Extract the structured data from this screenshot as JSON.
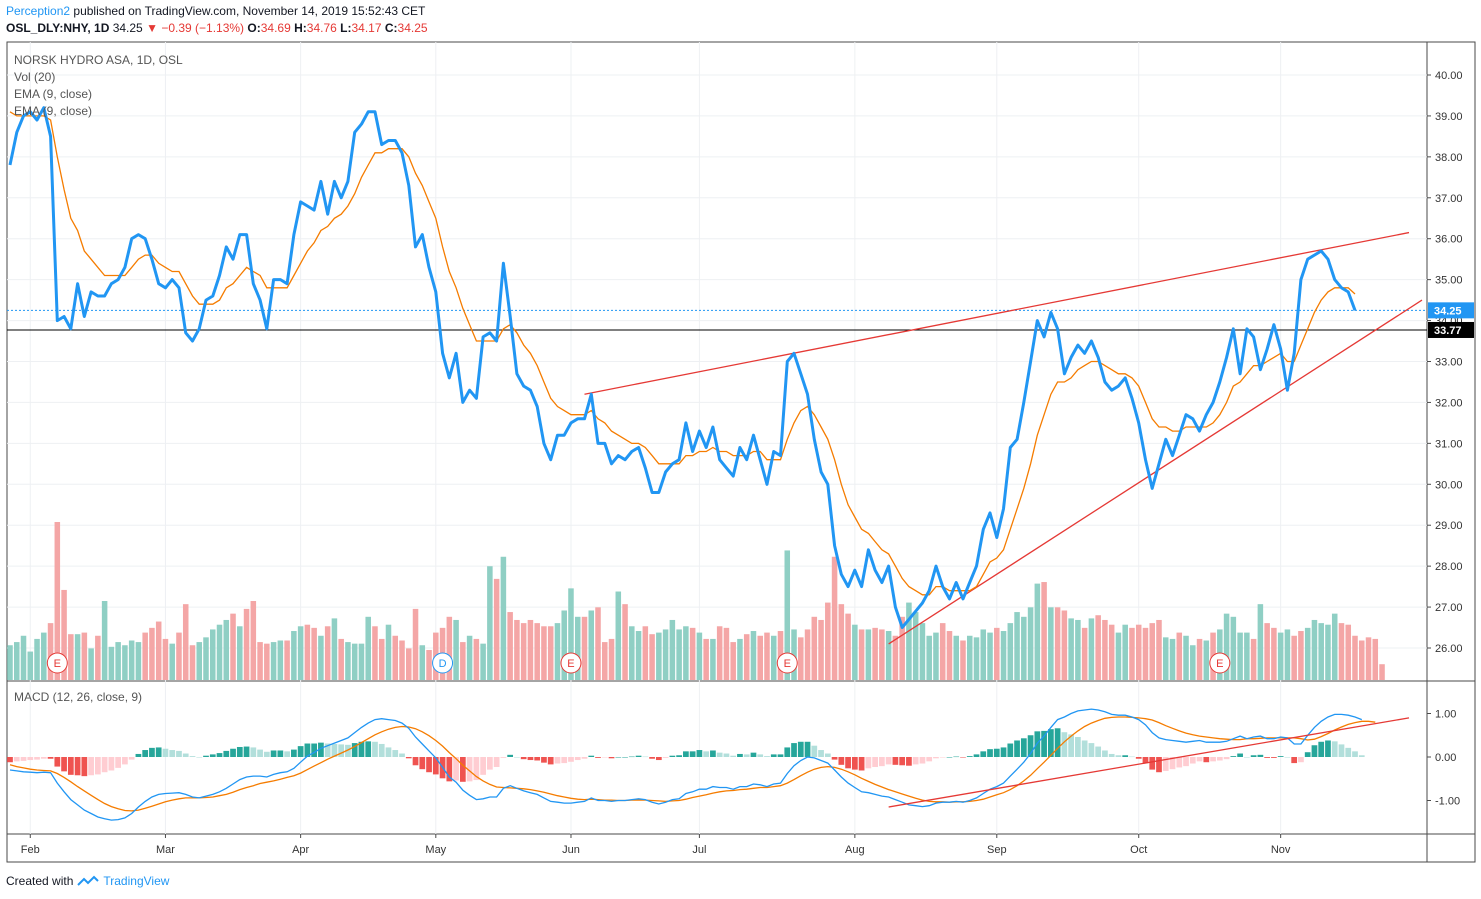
{
  "header": {
    "author": "Perception2",
    "published_text": "published on TradingView.com, November 14, 2019 15:52:43 CET",
    "symbol": "OSL_DLY:NHY, 1D",
    "last": "34.25",
    "change": "−0.39 (−1.13%)",
    "o_label": "O:",
    "o": "34.69",
    "h_label": "H:",
    "h": "34.76",
    "l_label": "L:",
    "l": "34.17",
    "c_label": "C:",
    "c": "34.25"
  },
  "legend": {
    "title": "NORSK HYDRO ASA, 1D, OSL",
    "vol": "Vol (20)",
    "ema1": "EMA (9, close)",
    "ema2": "EMA (9, close)",
    "macd": "MACD (12, 26, close, 9)"
  },
  "footer": {
    "created_with": "Created with",
    "brand": "TradingView"
  },
  "colors": {
    "price": "#2196f3",
    "ema": "#f57c00",
    "trend": "#e53935",
    "vol_up": "#8fcfc4",
    "vol_down": "#f4a6a6",
    "macd_line": "#2196f3",
    "signal_line": "#f57c00",
    "hist_pos_strong": "#26a69a",
    "hist_pos_weak": "#b2dfdb",
    "hist_neg_strong": "#ef5350",
    "hist_neg_weak": "#ffcdd2"
  },
  "chart_data": {
    "type": "line",
    "price_axis": {
      "ticks": [
        "40.00",
        "39.00",
        "38.00",
        "37.00",
        "36.00",
        "35.00",
        "34.00",
        "33.00",
        "32.00",
        "31.00",
        "30.00",
        "29.00",
        "28.00",
        "27.00",
        "26.00"
      ],
      "range": [
        25.3,
        40.7
      ]
    },
    "macd_axis": {
      "ticks": [
        "1.00",
        "0.00",
        "-1.00"
      ],
      "range": [
        -1.75,
        1.75
      ]
    },
    "months": [
      "Feb",
      "Mar",
      "Apr",
      "May",
      "Jun",
      "Jul",
      "Aug",
      "Sep",
      "Oct",
      "Nov"
    ],
    "month_index": [
      3,
      23,
      43,
      63,
      83,
      102,
      125,
      146,
      167,
      188
    ],
    "last_price_label": "34.25",
    "last_price": 34.25,
    "level_label": "33.77",
    "level": 33.77,
    "price": [
      37.8,
      38.6,
      39.0,
      39.1,
      38.9,
      39.2,
      38.5,
      34.0,
      34.1,
      33.8,
      34.9,
      34.1,
      34.7,
      34.6,
      34.6,
      34.9,
      35.0,
      35.3,
      36.0,
      36.1,
      36.0,
      35.5,
      34.9,
      34.8,
      35.0,
      34.8,
      33.7,
      33.5,
      33.8,
      34.5,
      34.6,
      35.1,
      35.8,
      35.5,
      36.1,
      36.1,
      34.9,
      34.5,
      33.8,
      35.0,
      35.0,
      34.9,
      36.1,
      36.9,
      36.8,
      36.7,
      37.4,
      36.6,
      37.4,
      37.0,
      37.4,
      38.6,
      38.8,
      39.1,
      39.1,
      38.3,
      38.4,
      38.4,
      38.1,
      37.3,
      35.8,
      36.1,
      35.3,
      34.7,
      33.2,
      32.6,
      33.2,
      32.0,
      32.3,
      32.1,
      33.6,
      33.7,
      33.5,
      35.4,
      34.1,
      32.7,
      32.4,
      32.3,
      31.9,
      31.0,
      30.6,
      31.2,
      31.2,
      31.5,
      31.6,
      31.6,
      32.2,
      31.0,
      31.0,
      30.5,
      30.7,
      30.6,
      30.8,
      30.9,
      30.4,
      29.8,
      29.8,
      30.3,
      30.5,
      30.6,
      31.5,
      30.8,
      31.3,
      30.9,
      31.4,
      30.6,
      30.4,
      30.2,
      30.9,
      30.6,
      31.2,
      30.6,
      30.0,
      30.8,
      30.7,
      33.0,
      33.2,
      32.7,
      32.2,
      31.1,
      30.3,
      30.0,
      28.5,
      27.8,
      27.5,
      27.9,
      27.5,
      28.4,
      27.9,
      27.6,
      28.0,
      27.0,
      26.5,
      26.7,
      26.9,
      27.1,
      27.4,
      28.0,
      27.5,
      27.2,
      27.6,
      27.2,
      27.6,
      28.0,
      28.9,
      29.3,
      28.7,
      29.4,
      30.9,
      31.1,
      32.0,
      33.0,
      34.0,
      33.6,
      34.2,
      33.8,
      32.7,
      33.1,
      33.4,
      33.2,
      33.5,
      33.1,
      32.5,
      32.3,
      32.4,
      32.6,
      32.1,
      31.5,
      30.6,
      29.9,
      30.5,
      31.1,
      30.7,
      31.2,
      31.7,
      31.6,
      31.3,
      31.7,
      32.0,
      32.5,
      33.1,
      33.8,
      32.7,
      33.8,
      33.6,
      32.8,
      33.3,
      33.9,
      33.3,
      32.3,
      33.2,
      35.0,
      35.5,
      35.6,
      35.7,
      35.5,
      35.0,
      34.8,
      34.7,
      34.25
    ],
    "ema": [
      39.1,
      39.0,
      39.0,
      39.0,
      39.0,
      39.0,
      38.9,
      38.0,
      37.2,
      36.5,
      36.2,
      35.7,
      35.5,
      35.3,
      35.1,
      35.1,
      35.1,
      35.1,
      35.3,
      35.5,
      35.6,
      35.6,
      35.4,
      35.3,
      35.2,
      35.2,
      34.9,
      34.6,
      34.4,
      34.4,
      34.4,
      34.5,
      34.8,
      34.9,
      35.1,
      35.3,
      35.2,
      35.1,
      34.8,
      34.8,
      34.8,
      34.8,
      35.1,
      35.4,
      35.7,
      35.9,
      36.2,
      36.3,
      36.5,
      36.6,
      36.8,
      37.1,
      37.5,
      37.8,
      38.1,
      38.1,
      38.2,
      38.2,
      38.2,
      38.0,
      37.6,
      37.3,
      36.9,
      36.5,
      35.8,
      35.2,
      34.8,
      34.3,
      33.9,
      33.5,
      33.5,
      33.5,
      33.5,
      33.8,
      33.9,
      33.7,
      33.4,
      33.2,
      32.9,
      32.5,
      32.1,
      31.9,
      31.8,
      31.7,
      31.7,
      31.7,
      31.8,
      31.6,
      31.5,
      31.3,
      31.2,
      31.1,
      31.0,
      31.0,
      30.9,
      30.7,
      30.5,
      30.5,
      30.5,
      30.5,
      30.7,
      30.7,
      30.8,
      30.8,
      30.9,
      30.8,
      30.8,
      30.7,
      30.7,
      30.7,
      30.8,
      30.8,
      30.6,
      30.6,
      30.6,
      31.1,
      31.5,
      31.8,
      31.9,
      31.7,
      31.4,
      31.1,
      30.6,
      30.0,
      29.5,
      29.2,
      28.9,
      28.8,
      28.6,
      28.4,
      28.3,
      28.0,
      27.7,
      27.5,
      27.4,
      27.3,
      27.3,
      27.5,
      27.5,
      27.4,
      27.4,
      27.4,
      27.4,
      27.5,
      27.8,
      28.1,
      28.2,
      28.4,
      28.9,
      29.4,
      29.9,
      30.5,
      31.2,
      31.7,
      32.2,
      32.5,
      32.5,
      32.6,
      32.8,
      32.9,
      33.0,
      33.0,
      32.9,
      32.8,
      32.7,
      32.7,
      32.6,
      32.4,
      32.0,
      31.6,
      31.4,
      31.4,
      31.3,
      31.3,
      31.4,
      31.4,
      31.4,
      31.4,
      31.5,
      31.7,
      32.0,
      32.4,
      32.5,
      32.7,
      32.9,
      32.9,
      33.0,
      33.1,
      33.2,
      33.0,
      33.0,
      33.4,
      33.8,
      34.2,
      34.5,
      34.7,
      34.8,
      34.8,
      34.8,
      34.65
    ],
    "volume": [
      0.22,
      0.24,
      0.28,
      0.18,
      0.26,
      0.3,
      0.36,
      1.0,
      0.57,
      0.29,
      0.29,
      0.3,
      0.2,
      0.28,
      0.5,
      0.21,
      0.24,
      0.22,
      0.25,
      0.24,
      0.3,
      0.33,
      0.37,
      0.26,
      0.23,
      0.3,
      0.48,
      0.22,
      0.24,
      0.27,
      0.32,
      0.35,
      0.38,
      0.42,
      0.34,
      0.45,
      0.5,
      0.24,
      0.23,
      0.24,
      0.25,
      0.25,
      0.31,
      0.34,
      0.35,
      0.33,
      0.28,
      0.34,
      0.39,
      0.26,
      0.24,
      0.23,
      0.23,
      0.4,
      0.34,
      0.26,
      0.35,
      0.28,
      0.25,
      0.2,
      0.45,
      0.22,
      0.19,
      0.3,
      0.33,
      0.4,
      0.38,
      0.24,
      0.28,
      0.26,
      0.23,
      0.72,
      0.64,
      0.78,
      0.43,
      0.38,
      0.36,
      0.38,
      0.36,
      0.34,
      0.34,
      0.36,
      0.44,
      0.58,
      0.4,
      0.4,
      0.44,
      0.46,
      0.24,
      0.26,
      0.56,
      0.48,
      0.34,
      0.31,
      0.34,
      0.29,
      0.3,
      0.32,
      0.38,
      0.32,
      0.34,
      0.33,
      0.3,
      0.26,
      0.26,
      0.34,
      0.33,
      0.24,
      0.26,
      0.29,
      0.31,
      0.28,
      0.3,
      0.28,
      0.31,
      0.82,
      0.32,
      0.27,
      0.32,
      0.4,
      0.38,
      0.49,
      0.78,
      0.48,
      0.42,
      0.35,
      0.32,
      0.32,
      0.33,
      0.32,
      0.31,
      0.28,
      0.4,
      0.49,
      0.43,
      0.36,
      0.28,
      0.3,
      0.36,
      0.31,
      0.28,
      0.25,
      0.28,
      0.27,
      0.32,
      0.3,
      0.33,
      0.31,
      0.36,
      0.43,
      0.4,
      0.46,
      0.61,
      0.62,
      0.46,
      0.46,
      0.44,
      0.39,
      0.38,
      0.33,
      0.39,
      0.41,
      0.38,
      0.35,
      0.3,
      0.35,
      0.33,
      0.35,
      0.33,
      0.36,
      0.38,
      0.27,
      0.26,
      0.3,
      0.28,
      0.22,
      0.26,
      0.25,
      0.3,
      0.32,
      0.42,
      0.4,
      0.3,
      0.3,
      0.26,
      0.48,
      0.36,
      0.33,
      0.3,
      0.32,
      0.28,
      0.31,
      0.33,
      0.38,
      0.36,
      0.35,
      0.42,
      0.36,
      0.35,
      0.28,
      0.25,
      0.27,
      0.26,
      0.1
    ],
    "volume_up": [
      1,
      1,
      1,
      1,
      1,
      1,
      0,
      0,
      0,
      0,
      1,
      0,
      1,
      0,
      1,
      1,
      1,
      1,
      1,
      1,
      0,
      0,
      0,
      0,
      1,
      0,
      0,
      0,
      1,
      1,
      1,
      1,
      1,
      0,
      1,
      0,
      0,
      0,
      0,
      1,
      1,
      0,
      1,
      1,
      0,
      0,
      1,
      0,
      1,
      0,
      1,
      1,
      1,
      1,
      0,
      0,
      1,
      0,
      0,
      0,
      0,
      1,
      0,
      0,
      0,
      0,
      1,
      0,
      1,
      0,
      1,
      1,
      0,
      1,
      0,
      0,
      0,
      0,
      0,
      0,
      0,
      1,
      1,
      1,
      1,
      0,
      1,
      0,
      0,
      0,
      1,
      0,
      1,
      1,
      0,
      0,
      1,
      1,
      1,
      1,
      1,
      0,
      1,
      0,
      1,
      0,
      0,
      0,
      1,
      0,
      1,
      0,
      0,
      1,
      0,
      1,
      1,
      0,
      0,
      0,
      0,
      0,
      0,
      0,
      0,
      1,
      0,
      1,
      0,
      0,
      1,
      0,
      0,
      1,
      1,
      1,
      1,
      1,
      0,
      0,
      1,
      0,
      1,
      1,
      1,
      1,
      0,
      1,
      1,
      1,
      1,
      1,
      1,
      0,
      1,
      0,
      0,
      1,
      1,
      0,
      1,
      0,
      0,
      0,
      1,
      1,
      0,
      0,
      0,
      0,
      0,
      1,
      1,
      0,
      1,
      1,
      0,
      1,
      0,
      1,
      1,
      1,
      1,
      1,
      0,
      1,
      0,
      0,
      1,
      1,
      0,
      0,
      1,
      1,
      1,
      1,
      1,
      0,
      0,
      0,
      0,
      0
    ],
    "earnings_markers": [
      {
        "label": "E",
        "index": 7
      },
      {
        "label": "D",
        "index": 64
      },
      {
        "label": "E",
        "index": 83
      },
      {
        "label": "E",
        "index": 115
      },
      {
        "label": "E",
        "index": 179
      }
    ],
    "macd": [
      -0.3,
      -0.32,
      -0.34,
      -0.35,
      -0.36,
      -0.35,
      -0.36,
      -0.6,
      -0.8,
      -0.98,
      -1.1,
      -1.22,
      -1.3,
      -1.38,
      -1.42,
      -1.45,
      -1.44,
      -1.4,
      -1.3,
      -1.15,
      -1.02,
      -0.92,
      -0.86,
      -0.84,
      -0.83,
      -0.82,
      -0.86,
      -0.92,
      -0.94,
      -0.9,
      -0.86,
      -0.8,
      -0.72,
      -0.62,
      -0.52,
      -0.46,
      -0.44,
      -0.44,
      -0.46,
      -0.4,
      -0.36,
      -0.34,
      -0.26,
      -0.12,
      0.02,
      0.1,
      0.2,
      0.26,
      0.32,
      0.38,
      0.44,
      0.56,
      0.68,
      0.78,
      0.86,
      0.88,
      0.86,
      0.84,
      0.78,
      0.66,
      0.46,
      0.3,
      0.14,
      -0.02,
      -0.24,
      -0.46,
      -0.58,
      -0.76,
      -0.88,
      -0.98,
      -0.96,
      -0.92,
      -0.92,
      -0.72,
      -0.66,
      -0.72,
      -0.78,
      -0.82,
      -0.86,
      -0.94,
      -1.02,
      -1.04,
      -1.06,
      -1.06,
      -1.04,
      -1.02,
      -0.94,
      -1.0,
      -1.0,
      -1.02,
      -1.0,
      -1.0,
      -0.98,
      -0.96,
      -0.98,
      -1.04,
      -1.08,
      -1.04,
      -0.98,
      -0.96,
      -0.84,
      -0.8,
      -0.74,
      -0.74,
      -0.68,
      -0.7,
      -0.7,
      -0.74,
      -0.68,
      -0.68,
      -0.62,
      -0.64,
      -0.68,
      -0.62,
      -0.6,
      -0.38,
      -0.2,
      -0.08,
      0.0,
      -0.02,
      -0.08,
      -0.14,
      -0.3,
      -0.46,
      -0.6,
      -0.7,
      -0.8,
      -0.82,
      -0.86,
      -0.9,
      -0.92,
      -0.98,
      -1.04,
      -1.1,
      -1.12,
      -1.14,
      -1.12,
      -1.06,
      -1.04,
      -1.04,
      -1.02,
      -1.04,
      -1.0,
      -0.94,
      -0.84,
      -0.74,
      -0.68,
      -0.6,
      -0.44,
      -0.28,
      -0.12,
      0.08,
      0.32,
      0.48,
      0.68,
      0.86,
      0.92,
      1.0,
      1.06,
      1.08,
      1.1,
      1.08,
      1.04,
      0.98,
      0.96,
      0.96,
      0.92,
      0.86,
      0.74,
      0.56,
      0.44,
      0.4,
      0.38,
      0.36,
      0.34,
      0.36,
      0.38,
      0.34,
      0.34,
      0.34,
      0.36,
      0.42,
      0.48,
      0.42,
      0.46,
      0.48,
      0.42,
      0.42,
      0.46,
      0.44,
      0.3,
      0.3,
      0.5,
      0.68,
      0.82,
      0.92,
      0.98,
      0.98,
      0.96,
      0.92,
      0.86
    ],
    "signal": [
      -0.18,
      -0.22,
      -0.25,
      -0.28,
      -0.3,
      -0.31,
      -0.32,
      -0.38,
      -0.47,
      -0.57,
      -0.68,
      -0.78,
      -0.88,
      -0.98,
      -1.07,
      -1.14,
      -1.19,
      -1.23,
      -1.24,
      -1.22,
      -1.18,
      -1.13,
      -1.08,
      -1.03,
      -0.99,
      -0.96,
      -0.94,
      -0.94,
      -0.94,
      -0.93,
      -0.92,
      -0.89,
      -0.86,
      -0.81,
      -0.75,
      -0.7,
      -0.66,
      -0.61,
      -0.58,
      -0.55,
      -0.51,
      -0.47,
      -0.43,
      -0.37,
      -0.29,
      -0.21,
      -0.13,
      -0.05,
      0.02,
      0.09,
      0.16,
      0.24,
      0.33,
      0.42,
      0.51,
      0.58,
      0.64,
      0.68,
      0.7,
      0.69,
      0.65,
      0.58,
      0.49,
      0.38,
      0.25,
      0.1,
      -0.04,
      -0.19,
      -0.32,
      -0.45,
      -0.55,
      -0.63,
      -0.69,
      -0.7,
      -0.71,
      -0.72,
      -0.73,
      -0.75,
      -0.78,
      -0.81,
      -0.85,
      -0.89,
      -0.92,
      -0.95,
      -0.97,
      -0.98,
      -0.97,
      -0.98,
      -0.99,
      -0.99,
      -1.0,
      -1.0,
      -0.99,
      -0.99,
      -0.99,
      -1.0,
      -1.01,
      -1.02,
      -1.01,
      -1.0,
      -0.97,
      -0.93,
      -0.9,
      -0.87,
      -0.83,
      -0.8,
      -0.78,
      -0.77,
      -0.75,
      -0.74,
      -0.72,
      -0.7,
      -0.7,
      -0.68,
      -0.66,
      -0.6,
      -0.52,
      -0.43,
      -0.35,
      -0.28,
      -0.24,
      -0.22,
      -0.24,
      -0.28,
      -0.34,
      -0.41,
      -0.49,
      -0.56,
      -0.63,
      -0.69,
      -0.75,
      -0.8,
      -0.85,
      -0.9,
      -0.95,
      -0.99,
      -1.02,
      -1.03,
      -1.03,
      -1.04,
      -1.03,
      -1.03,
      -1.02,
      -1.0,
      -0.97,
      -0.92,
      -0.87,
      -0.82,
      -0.75,
      -0.66,
      -0.55,
      -0.42,
      -0.27,
      -0.12,
      0.04,
      0.2,
      0.35,
      0.48,
      0.6,
      0.7,
      0.78,
      0.84,
      0.89,
      0.91,
      0.92,
      0.92,
      0.91,
      0.9,
      0.88,
      0.85,
      0.79,
      0.72,
      0.66,
      0.6,
      0.55,
      0.51,
      0.48,
      0.46,
      0.44,
      0.42,
      0.41,
      0.4,
      0.4,
      0.42,
      0.42,
      0.43,
      0.44,
      0.44,
      0.44,
      0.44,
      0.44,
      0.42,
      0.39,
      0.41,
      0.47,
      0.54,
      0.62,
      0.69,
      0.75,
      0.79,
      0.82,
      0.82,
      0.8
    ]
  }
}
